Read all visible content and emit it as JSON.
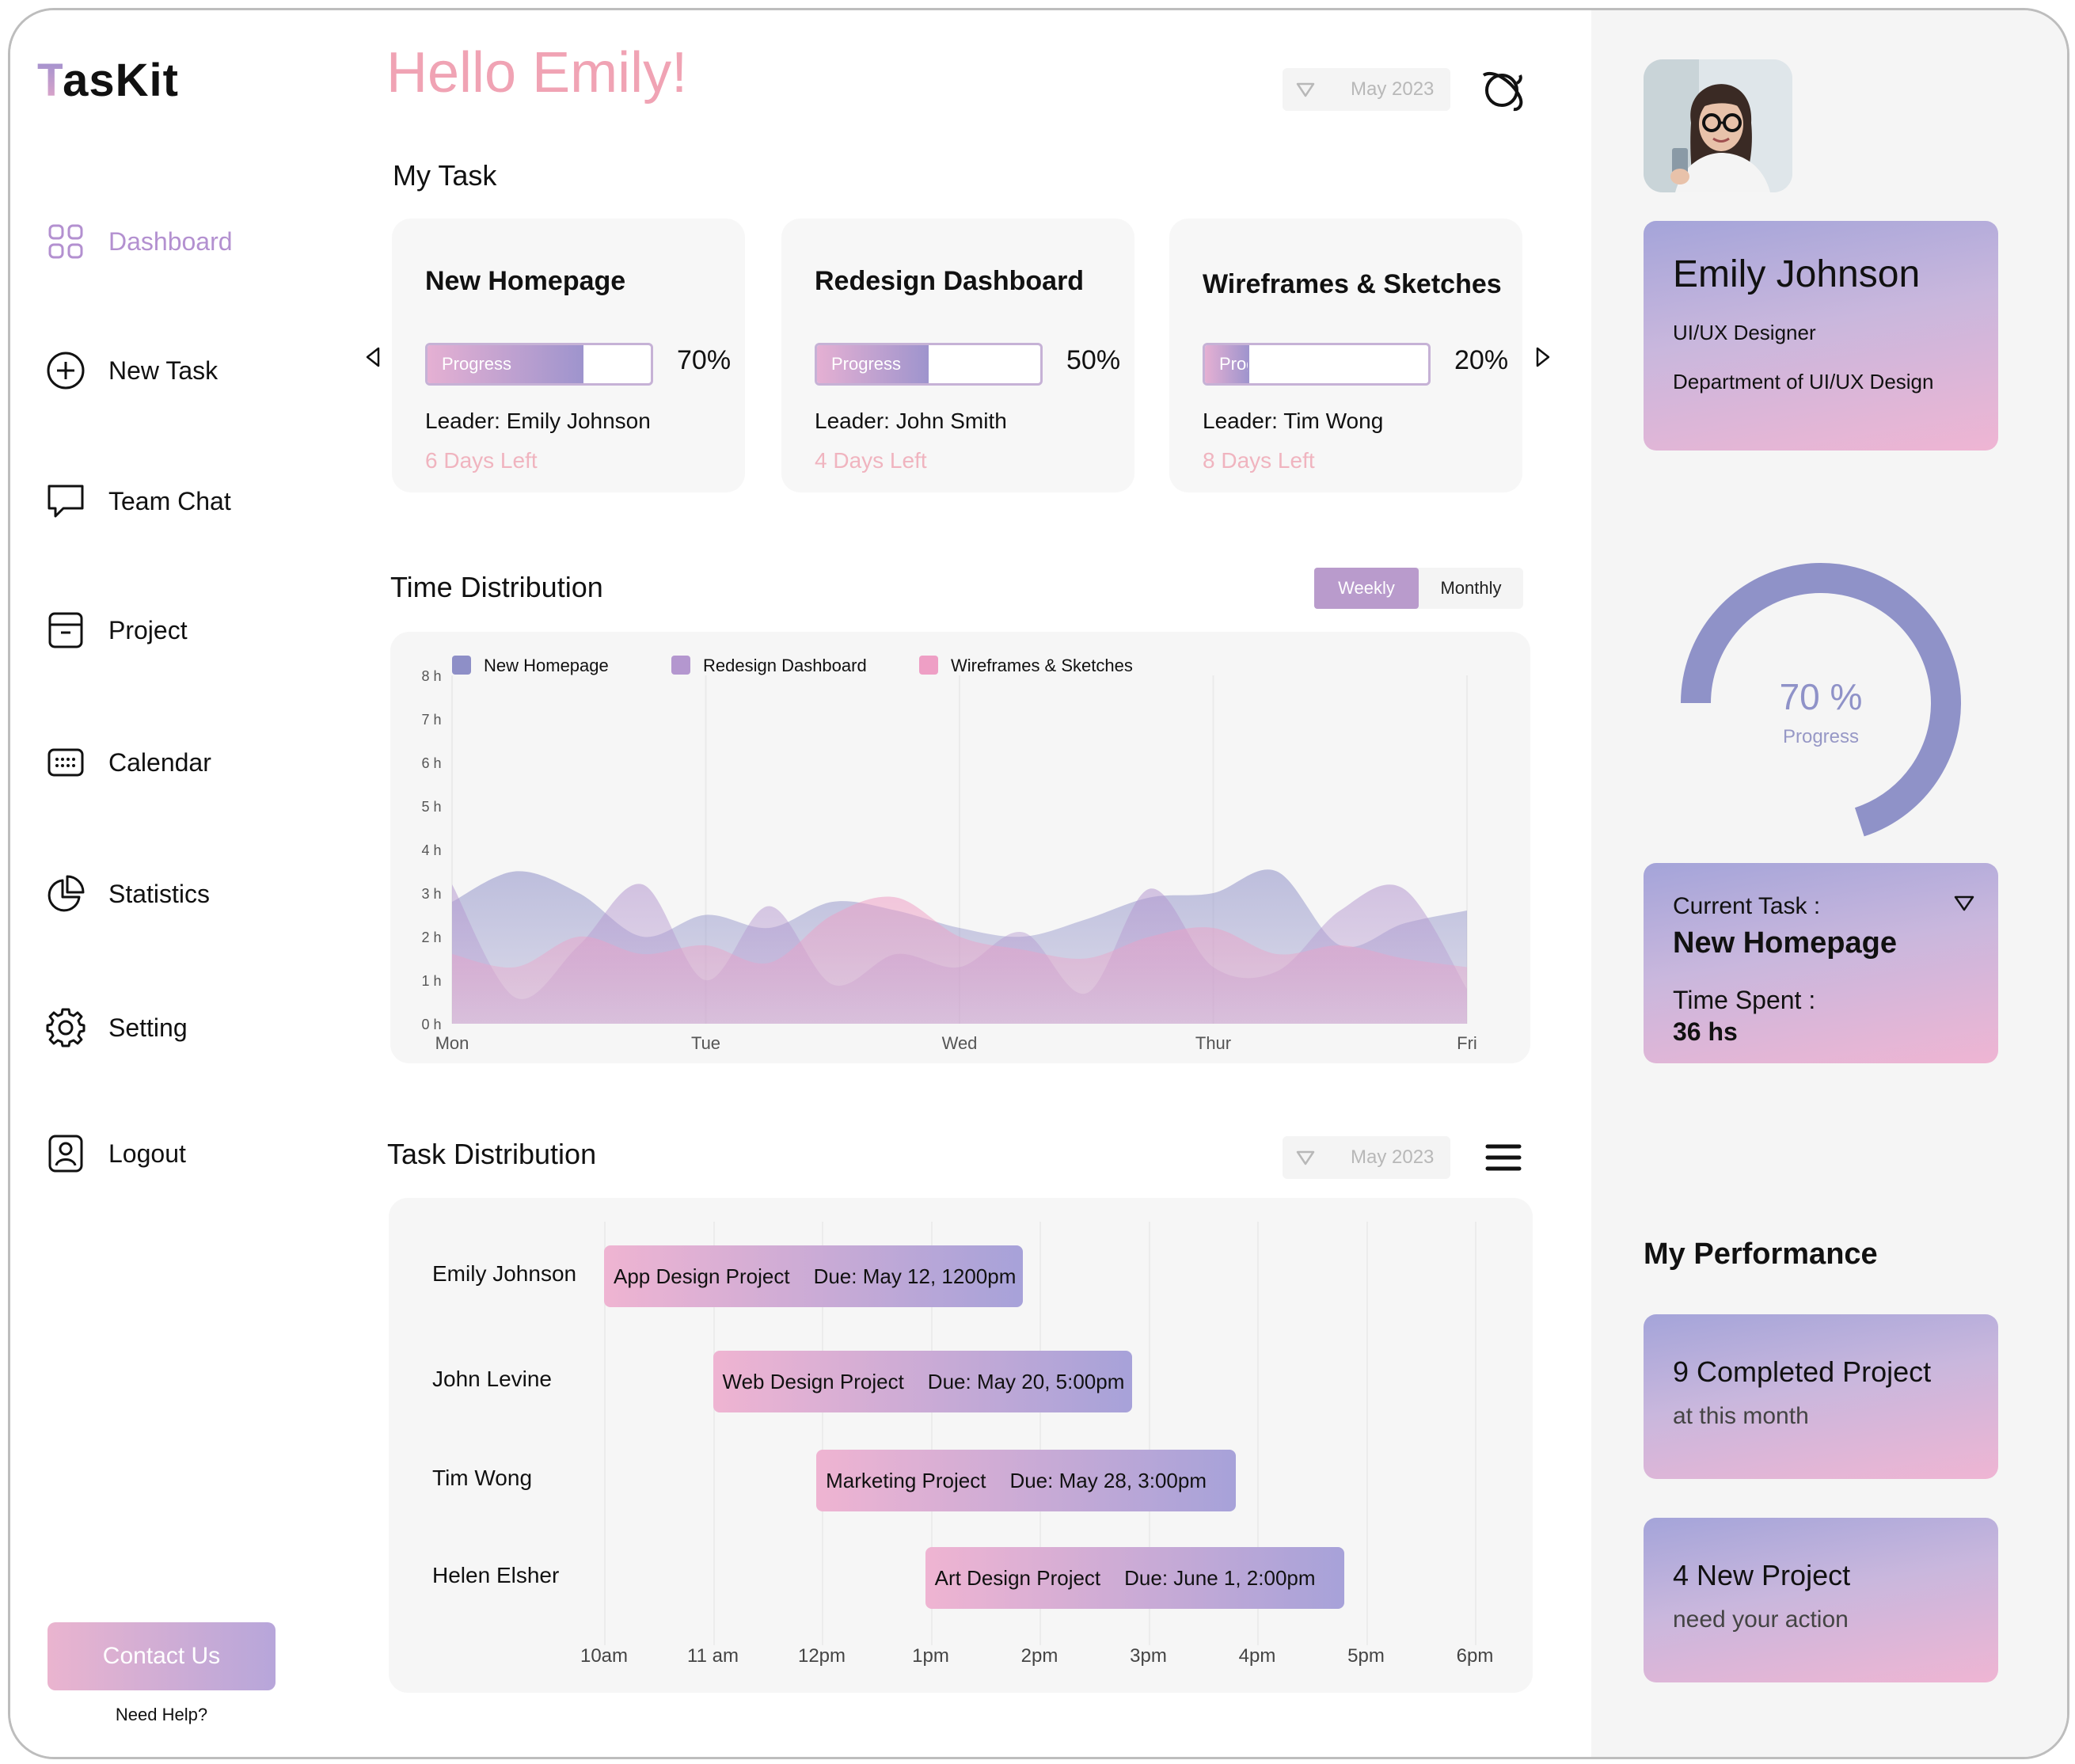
{
  "app": {
    "logo_first": "T",
    "logo_rest": "asKit"
  },
  "sidebar": {
    "items": [
      {
        "label": "Dashboard",
        "icon": "grid-icon",
        "active": true
      },
      {
        "label": "New Task",
        "icon": "plus-circle-icon"
      },
      {
        "label": "Team Chat",
        "icon": "chat-icon"
      },
      {
        "label": "Project",
        "icon": "archive-icon"
      },
      {
        "label": "Calendar",
        "icon": "calendar-icon"
      },
      {
        "label": "Statistics",
        "icon": "pie-chart-icon"
      },
      {
        "label": "Setting",
        "icon": "gear-icon"
      },
      {
        "label": "Logout",
        "icon": "user-badge-icon"
      }
    ],
    "contact_label": "Contact Us",
    "help_text": "Need Help?"
  },
  "header": {
    "greeting": "Hello Emily!",
    "date_filter": "May 2023",
    "action_icon": "planet-icon"
  },
  "my_task": {
    "title": "My Task",
    "progress_label": "Progress",
    "cards": [
      {
        "title": "New Homepage",
        "progress": 70,
        "percent_text": "70%",
        "leader": "Leader: Emily Johnson",
        "days_left": "6 Days Left"
      },
      {
        "title": "Redesign Dashboard",
        "progress": 50,
        "percent_text": "50%",
        "leader": "Leader: John Smith",
        "days_left": "4 Days Left"
      },
      {
        "title": "Wireframes & Sketches",
        "progress": 20,
        "percent_text": "20%",
        "leader": "Leader: Tim Wong",
        "days_left": "8 Days Left"
      }
    ]
  },
  "time_distribution": {
    "title": "Time Distribution",
    "toggle": [
      "Weekly",
      "Monthly"
    ],
    "active_toggle": "Weekly"
  },
  "chart_data": {
    "type": "area",
    "x_labels": [
      "Mon",
      "Tue",
      "Wed",
      "Thur",
      "Fri"
    ],
    "y_ticks": [
      "0 h",
      "1 h",
      "2 h",
      "3 h",
      "4 h",
      "5 h",
      "6 h",
      "7 h",
      "8 h"
    ],
    "ylim": [
      0,
      8
    ],
    "xlim": [
      0,
      4
    ],
    "series": [
      {
        "name": "New Homepage",
        "color": "#8e8fc7",
        "x": [
          0,
          0.25,
          0.5,
          0.75,
          1,
          1.25,
          1.5,
          1.75,
          2,
          2.25,
          2.5,
          2.75,
          3,
          3.25,
          3.5,
          3.75,
          4
        ],
        "values": [
          2.8,
          3.5,
          3.0,
          2.0,
          2.5,
          2.2,
          2.8,
          2.6,
          2.2,
          2.0,
          2.4,
          2.9,
          3.0,
          3.5,
          1.8,
          2.3,
          2.6
        ]
      },
      {
        "name": "Redesign Dashboard",
        "color": "#b497cf",
        "x": [
          0,
          0.25,
          0.5,
          0.75,
          1,
          1.25,
          1.5,
          1.75,
          2,
          2.25,
          2.5,
          2.75,
          3,
          3.25,
          3.5,
          3.75,
          4
        ],
        "values": [
          3.2,
          0.6,
          1.8,
          3.2,
          1.0,
          2.7,
          0.9,
          1.6,
          1.3,
          2.1,
          0.7,
          3.1,
          1.3,
          1.2,
          2.6,
          3.1,
          0.8
        ]
      },
      {
        "name": "Wireframes & Sketches",
        "color": "#ee9fc5",
        "x": [
          0,
          0.25,
          0.5,
          0.75,
          1,
          1.25,
          1.5,
          1.75,
          2,
          2.25,
          2.5,
          2.75,
          3,
          3.25,
          3.5,
          3.75,
          4
        ],
        "values": [
          1.6,
          1.3,
          2.0,
          1.6,
          1.8,
          1.4,
          2.5,
          2.9,
          2.0,
          1.7,
          1.5,
          2.0,
          2.2,
          1.6,
          1.8,
          1.5,
          1.3
        ]
      }
    ]
  },
  "task_distribution": {
    "title": "Task Distribution",
    "date_filter": "May 2023",
    "menu_icon": "hamburger-icon",
    "time_labels": [
      "10am",
      "11 am",
      "12pm",
      "1pm",
      "2pm",
      "3pm",
      "4pm",
      "5pm",
      "6pm"
    ],
    "rows": [
      {
        "person": "Emily Johnson",
        "project": "App Design Project",
        "due": "Due: May 12, 1200pm",
        "start": 10.0,
        "end": 13.85
      },
      {
        "person": "John Levine",
        "project": "Web Design Project",
        "due": "Due: May 20, 5:00pm",
        "start": 11.0,
        "end": 14.85
      },
      {
        "person": "Tim Wong",
        "project": "Marketing Project",
        "due": "Due: May 28, 3:00pm",
        "start": 11.95,
        "end": 15.8
      },
      {
        "person": "Helen Elsher",
        "project": "Art Design Project",
        "due": "Due: June 1, 2:00pm",
        "start": 12.95,
        "end": 16.8
      }
    ]
  },
  "profile": {
    "name": "Emily Johnson",
    "role": "UI/UX Designer",
    "department": "Department of UI/UX Design",
    "progress": 70,
    "progress_text": "70 %",
    "progress_label": "Progress"
  },
  "current_task": {
    "label": "Current Task :",
    "name": "New Homepage",
    "time_label": "Time Spent :",
    "time_value": "36 hs"
  },
  "performance": {
    "title": "My Performance",
    "cards": [
      {
        "main": "9 Completed Project",
        "sub": "at this month"
      },
      {
        "main": "4 New Project",
        "sub": "need your action"
      }
    ]
  }
}
